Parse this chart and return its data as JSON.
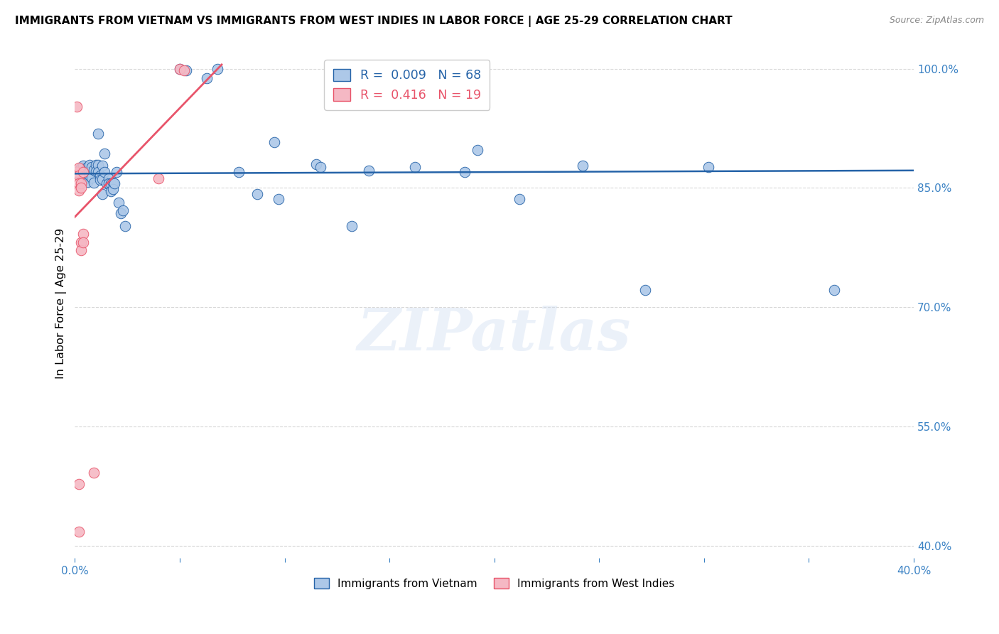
{
  "title": "IMMIGRANTS FROM VIETNAM VS IMMIGRANTS FROM WEST INDIES IN LABOR FORCE | AGE 25-29 CORRELATION CHART",
  "source": "Source: ZipAtlas.com",
  "ylabel": "In Labor Force | Age 25-29",
  "ylabel_ticks": [
    40.0,
    55.0,
    70.0,
    85.0,
    100.0
  ],
  "xlim": [
    0.0,
    0.4
  ],
  "ylim": [
    0.385,
    1.025
  ],
  "vietnam_color": "#adc8e8",
  "wi_color": "#f5b8c4",
  "vietnam_line_color": "#2563a8",
  "wi_line_color": "#e8546a",
  "vietnam_scatter": [
    [
      0.001,
      0.87
    ],
    [
      0.002,
      0.872
    ],
    [
      0.002,
      0.868
    ],
    [
      0.003,
      0.875
    ],
    [
      0.003,
      0.862
    ],
    [
      0.003,
      0.868
    ],
    [
      0.004,
      0.878
    ],
    [
      0.004,
      0.864
    ],
    [
      0.004,
      0.86
    ],
    [
      0.005,
      0.873
    ],
    [
      0.005,
      0.868
    ],
    [
      0.005,
      0.862
    ],
    [
      0.006,
      0.876
    ],
    [
      0.006,
      0.869
    ],
    [
      0.006,
      0.864
    ],
    [
      0.006,
      0.858
    ],
    [
      0.007,
      0.879
    ],
    [
      0.007,
      0.87
    ],
    [
      0.007,
      0.866
    ],
    [
      0.008,
      0.876
    ],
    [
      0.008,
      0.863
    ],
    [
      0.009,
      0.873
    ],
    [
      0.009,
      0.857
    ],
    [
      0.01,
      0.879
    ],
    [
      0.01,
      0.871
    ],
    [
      0.011,
      0.918
    ],
    [
      0.011,
      0.879
    ],
    [
      0.011,
      0.87
    ],
    [
      0.012,
      0.866
    ],
    [
      0.012,
      0.86
    ],
    [
      0.013,
      0.878
    ],
    [
      0.013,
      0.842
    ],
    [
      0.013,
      0.861
    ],
    [
      0.014,
      0.893
    ],
    [
      0.014,
      0.87
    ],
    [
      0.015,
      0.856
    ],
    [
      0.016,
      0.862
    ],
    [
      0.016,
      0.856
    ],
    [
      0.017,
      0.856
    ],
    [
      0.017,
      0.846
    ],
    [
      0.018,
      0.857
    ],
    [
      0.018,
      0.849
    ],
    [
      0.019,
      0.856
    ],
    [
      0.02,
      0.87
    ],
    [
      0.021,
      0.832
    ],
    [
      0.022,
      0.818
    ],
    [
      0.023,
      0.822
    ],
    [
      0.024,
      0.802
    ],
    [
      0.05,
      1.0
    ],
    [
      0.053,
      0.998
    ],
    [
      0.063,
      0.988
    ],
    [
      0.068,
      1.0
    ],
    [
      0.078,
      0.87
    ],
    [
      0.087,
      0.842
    ],
    [
      0.095,
      0.908
    ],
    [
      0.097,
      0.836
    ],
    [
      0.115,
      0.88
    ],
    [
      0.117,
      0.876
    ],
    [
      0.132,
      0.802
    ],
    [
      0.14,
      0.872
    ],
    [
      0.162,
      0.876
    ],
    [
      0.186,
      0.87
    ],
    [
      0.192,
      0.898
    ],
    [
      0.212,
      0.836
    ],
    [
      0.242,
      0.878
    ],
    [
      0.272,
      0.722
    ],
    [
      0.302,
      0.876
    ],
    [
      0.362,
      0.722
    ]
  ],
  "wi_scatter": [
    [
      0.001,
      0.87
    ],
    [
      0.001,
      0.952
    ],
    [
      0.002,
      0.875
    ],
    [
      0.002,
      0.866
    ],
    [
      0.002,
      0.856
    ],
    [
      0.002,
      0.847
    ],
    [
      0.003,
      0.856
    ],
    [
      0.003,
      0.85
    ],
    [
      0.003,
      0.782
    ],
    [
      0.003,
      0.772
    ],
    [
      0.004,
      0.87
    ],
    [
      0.004,
      0.792
    ],
    [
      0.004,
      0.782
    ],
    [
      0.05,
      1.0
    ],
    [
      0.052,
      0.998
    ],
    [
      0.002,
      0.478
    ],
    [
      0.002,
      0.418
    ],
    [
      0.009,
      0.492
    ],
    [
      0.04,
      0.862
    ]
  ],
  "vi_trend_x": [
    0.0,
    0.4
  ],
  "vi_trend_y": [
    0.868,
    0.872
  ],
  "wi_trend_x": [
    -0.005,
    0.07
  ],
  "wi_trend_y": [
    0.8,
    1.005
  ],
  "watermark": "ZIPatlas",
  "background_color": "#ffffff",
  "grid_color": "#d8d8d8"
}
